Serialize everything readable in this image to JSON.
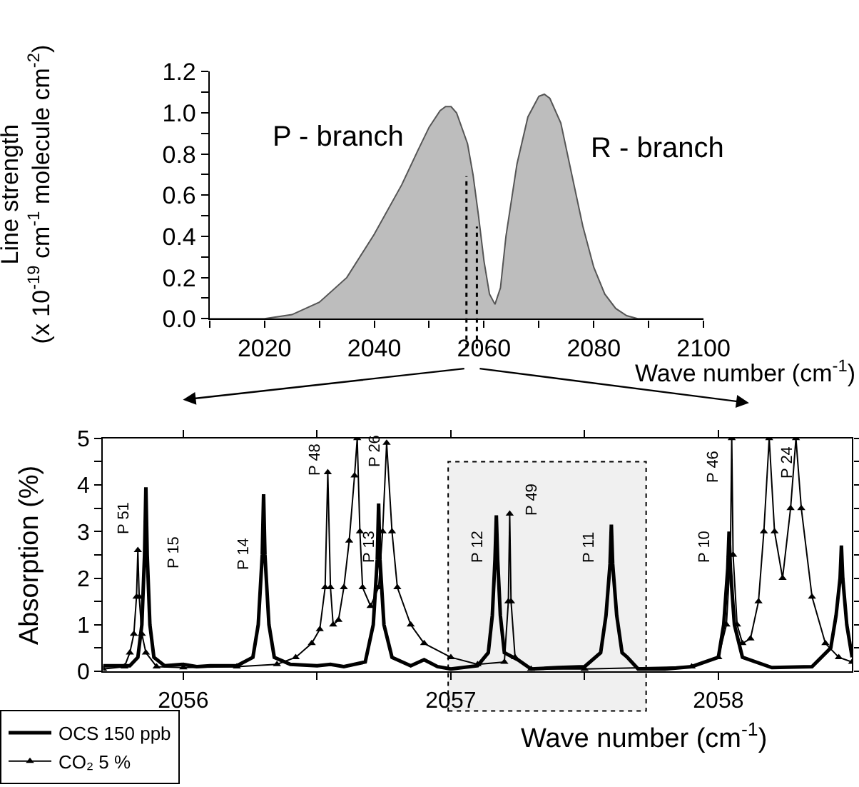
{
  "chart_data": [
    {
      "type": "area",
      "xlabel": "Wave number (cm$^{-1}$)",
      "ylabel": "Line strength\n(x 10$^{-19}$ cm$^{-1}$ molecule cm$^{-2}$)",
      "xlim": [
        2010,
        2100
      ],
      "ylim": [
        0,
        1.2
      ],
      "xticks": [
        {
          "value": 2010,
          "label": null
        },
        2020,
        {
          "value": 2030,
          "label": null
        },
        2040,
        {
          "value": 2050,
          "label": null
        },
        2060,
        {
          "value": 2070,
          "label": null
        },
        2080,
        {
          "value": 2090,
          "label": null
        },
        2100
      ],
      "yticks": [
        {
          "value": 0,
          "label": "0.0"
        },
        {
          "value": 0.1,
          "label": null
        },
        0.2,
        {
          "value": 0.3,
          "label": null
        },
        0.4,
        {
          "value": 0.5,
          "label": null
        },
        0.6,
        {
          "value": 0.7,
          "label": null
        },
        0.8,
        {
          "value": 0.9,
          "label": null
        },
        {
          "value": 1.0,
          "label": "1.0"
        },
        {
          "value": 1.1,
          "label": null
        },
        1.2
      ],
      "grid": false,
      "legend": false,
      "series": [
        {
          "color": "#bdbdbd",
          "x": [
            2010,
            2020,
            2025,
            2030,
            2035,
            2040,
            2045,
            2048,
            2050,
            2052,
            2053,
            2054,
            2055,
            2057,
            2058,
            2059,
            2060,
            2061,
            2062,
            2063,
            2064,
            2066,
            2068,
            2070,
            2071,
            2072,
            2074,
            2076,
            2078,
            2080,
            2082,
            2084,
            2086,
            2088,
            2100
          ],
          "values": [
            0,
            0,
            0.02,
            0.08,
            0.2,
            0.41,
            0.65,
            0.82,
            0.93,
            1.01,
            1.03,
            1.03,
            1.0,
            0.85,
            0.7,
            0.5,
            0.28,
            0.12,
            0.07,
            0.15,
            0.4,
            0.75,
            0.98,
            1.08,
            1.09,
            1.07,
            0.95,
            0.7,
            0.45,
            0.25,
            0.12,
            0.05,
            0.015,
            0,
            0
          ]
        }
      ],
      "ref_lines": [
        {
          "axis": "x",
          "value": 2056.8,
          "line_style": "dotted",
          "color": "#000000"
        },
        {
          "axis": "x",
          "value": 2058.7,
          "line_style": "dotted",
          "color": "#000000"
        }
      ],
      "annotations": [
        "P - branch",
        "R - branch"
      ]
    },
    {
      "type": "line",
      "xlabel": "Wave number (cm$^{-1}$)",
      "ylabel": "Absorption (%)",
      "xlim": [
        2055.7,
        2058.5
      ],
      "ylim": [
        0,
        5
      ],
      "xticks": [
        2056,
        {
          "value": 2056.5,
          "label": null
        },
        2057,
        {
          "value": 2057.5,
          "label": null
        },
        2058
      ],
      "yticks": [
        0,
        {
          "value": 0.5,
          "label": null
        },
        1,
        {
          "value": 1.5,
          "label": null
        },
        2,
        {
          "value": 2.5,
          "label": null
        },
        3,
        {
          "value": 3.5,
          "label": null
        },
        4,
        {
          "value": 4.5,
          "label": null
        },
        5
      ],
      "grid": false,
      "legend": "bottom left",
      "series": [
        {
          "name": "OCS 150 ppb",
          "color": "#000000",
          "marker": "none",
          "line_style": "solid",
          "x": [
            2055.7,
            2055.8,
            2055.83,
            2055.845,
            2055.855,
            2055.86,
            2055.865,
            2055.875,
            2055.89,
            2055.93,
            2056.0,
            2056.05,
            2056.1,
            2056.2,
            2056.26,
            2056.28,
            2056.295,
            2056.3,
            2056.305,
            2056.32,
            2056.34,
            2056.4,
            2056.5,
            2056.55,
            2056.6,
            2056.68,
            2056.71,
            2056.725,
            2056.73,
            2056.735,
            2056.75,
            2056.78,
            2056.85,
            2056.9,
            2056.95,
            2057.0,
            2057.1,
            2057.14,
            2057.155,
            2057.165,
            2057.17,
            2057.175,
            2057.185,
            2057.2,
            2057.25,
            2057.3,
            2057.4,
            2057.5,
            2057.56,
            2057.58,
            2057.595,
            2057.6,
            2057.605,
            2057.62,
            2057.64,
            2057.66,
            2057.7,
            2057.8,
            2057.9,
            2058.0,
            2058.02,
            2058.035,
            2058.04,
            2058.045,
            2058.06,
            2058.09,
            2058.2,
            2058.35,
            2058.42,
            2058.44,
            2058.455,
            2058.46,
            2058.465,
            2058.48,
            2058.5
          ],
          "values": [
            0.12,
            0.12,
            0.3,
            1.0,
            2.5,
            3.95,
            2.5,
            1.0,
            0.3,
            0.12,
            0.15,
            0.1,
            0.12,
            0.12,
            0.3,
            1.0,
            2.5,
            3.8,
            2.5,
            1.0,
            0.3,
            0.15,
            0.12,
            0.15,
            0.1,
            0.2,
            1.0,
            2.4,
            3.6,
            2.4,
            1.0,
            0.3,
            0.12,
            0.25,
            0.1,
            0.05,
            0.12,
            0.4,
            1.2,
            2.4,
            3.35,
            2.4,
            1.2,
            0.4,
            0.25,
            0.05,
            0.08,
            0.1,
            0.4,
            1.2,
            2.3,
            3.15,
            2.3,
            1.2,
            0.4,
            0.3,
            0.05,
            0.05,
            0.1,
            0.3,
            1.0,
            2.2,
            3.0,
            2.2,
            1.0,
            0.3,
            0.08,
            0.1,
            0.5,
            1.2,
            2.0,
            2.7,
            2.0,
            1.0,
            0.3
          ]
        },
        {
          "name": "CO₂ 5 %",
          "color": "#000000",
          "marker": "triangle",
          "line_style": "solid",
          "x": [
            2055.7,
            2055.78,
            2055.8,
            2055.815,
            2055.825,
            2055.83,
            2055.835,
            2055.845,
            2055.86,
            2055.9,
            2056.0,
            2056.2,
            2056.35,
            2056.42,
            2056.48,
            2056.51,
            2056.53,
            2056.54,
            2056.55,
            2056.56,
            2056.58,
            2056.6,
            2056.62,
            2056.64,
            2056.65,
            2056.66,
            2056.67,
            2056.7,
            2056.73,
            2056.745,
            2056.76,
            2056.78,
            2056.8,
            2056.85,
            2056.9,
            2057.0,
            2057.1,
            2057.2,
            2057.215,
            2057.22,
            2057.225,
            2057.24,
            2057.3,
            2057.5,
            2057.9,
            2058.0,
            2058.03,
            2058.045,
            2058.05,
            2058.055,
            2058.07,
            2058.09,
            2058.12,
            2058.15,
            2058.17,
            2058.19,
            2058.21,
            2058.24,
            2058.27,
            2058.29,
            2058.31,
            2058.35,
            2058.4,
            2058.45,
            2058.5
          ],
          "values": [
            0.05,
            0.1,
            0.4,
            0.8,
            1.6,
            2.6,
            1.6,
            0.8,
            0.4,
            0.1,
            0.08,
            0.1,
            0.15,
            0.3,
            0.6,
            0.9,
            1.8,
            4.27,
            1.8,
            1.0,
            1.1,
            1.8,
            2.8,
            4.2,
            5.0,
            3.0,
            1.8,
            1.4,
            1.8,
            3.0,
            4.9,
            3.0,
            1.8,
            1.0,
            0.6,
            0.3,
            0.15,
            0.2,
            1.5,
            3.38,
            1.5,
            0.3,
            0.05,
            0.05,
            0.1,
            0.3,
            1.0,
            2.5,
            5.0,
            2.5,
            1.0,
            0.6,
            0.7,
            1.5,
            3.0,
            5.0,
            3.0,
            2.0,
            3.5,
            5.0,
            3.5,
            1.6,
            0.6,
            0.3,
            0.2
          ]
        }
      ],
      "bands": [
        {
          "axis": "x",
          "from": 2056.99,
          "to": 2057.73,
          "color": "#000000"
        }
      ],
      "annotations": [
        "P 51",
        "P 15",
        "P 14",
        "P 48",
        "P 26",
        "P 13",
        "P 12",
        "P 49",
        "P 11",
        "P 10",
        "P 46",
        "P 24"
      ]
    }
  ]
}
